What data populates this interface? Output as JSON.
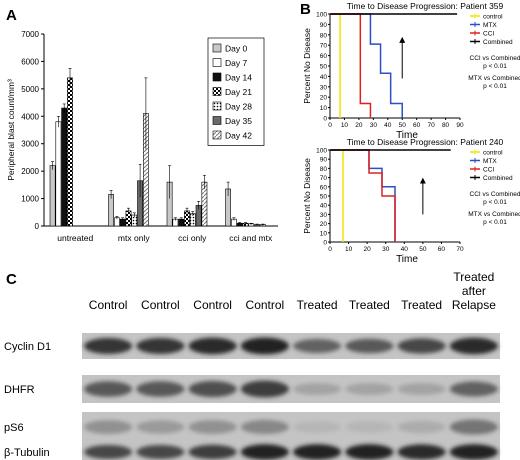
{
  "panels": {
    "A": "A",
    "B": "B",
    "C": "C"
  },
  "chart_data": [
    {
      "type": "bar",
      "panel": "A",
      "ylabel": "Peripheral blast count/mm³",
      "xlabel": "",
      "ylim": [
        0,
        7000
      ],
      "yticks": [
        0,
        1000,
        2000,
        3000,
        4000,
        5000,
        6000,
        7000
      ],
      "categories": [
        "untreated",
        "mtx only",
        "cci only",
        "cci and mtx"
      ],
      "legend_position": "top-right",
      "error_bars": true,
      "series": [
        {
          "name": "Day 0",
          "values": [
            2200,
            1150,
            1600,
            1350
          ],
          "errors": [
            150,
            150,
            600,
            250
          ],
          "pattern": "lightgray"
        },
        {
          "name": "Day 7",
          "values": [
            3800,
            300,
            250,
            250
          ],
          "errors": [
            200,
            50,
            50,
            50
          ],
          "pattern": "white"
        },
        {
          "name": "Day 14",
          "values": [
            4300,
            250,
            250,
            100
          ],
          "errors": [
            150,
            50,
            50,
            30
          ],
          "pattern": "black"
        },
        {
          "name": "Day 21",
          "values": [
            5400,
            550,
            550,
            100
          ],
          "errors": [
            350,
            100,
            100,
            30
          ],
          "pattern": "checker"
        },
        {
          "name": "Day 28",
          "values": [
            null,
            400,
            450,
            80
          ],
          "errors": [
            null,
            80,
            80,
            20
          ],
          "pattern": "dots"
        },
        {
          "name": "Day 35",
          "values": [
            null,
            1650,
            750,
            50
          ],
          "errors": [
            null,
            600,
            150,
            20
          ],
          "pattern": "darkgray"
        },
        {
          "name": "Day 42",
          "values": [
            null,
            4100,
            1600,
            50
          ],
          "errors": [
            null,
            1300,
            250,
            20
          ],
          "pattern": "diag"
        }
      ]
    },
    {
      "type": "line",
      "step": true,
      "panel": "B-top",
      "title": "Time to Disease Progression: Patient 359",
      "xlabel": "Time",
      "ylabel": "Percent No Disease",
      "xlim": [
        0,
        90
      ],
      "ylim": [
        0,
        100
      ],
      "xticks": [
        0,
        10,
        20,
        30,
        40,
        50,
        60,
        70,
        80,
        90
      ],
      "yticks": [
        0,
        10,
        20,
        30,
        40,
        50,
        60,
        70,
        80,
        90,
        100
      ],
      "arrow_at": [
        50,
        78
      ],
      "series": [
        {
          "name": "control",
          "color": "#f0e400",
          "x": [
            0,
            7,
            7
          ],
          "y": [
            100,
            100,
            0
          ]
        },
        {
          "name": "MTX",
          "color": "#2b4fc4",
          "x": [
            0,
            28,
            28,
            35,
            35,
            42,
            42,
            50,
            50
          ],
          "y": [
            100,
            100,
            71,
            71,
            43,
            43,
            14,
            14,
            0
          ]
        },
        {
          "name": "CCI",
          "color": "#e02020",
          "x": [
            0,
            21,
            21,
            28,
            28
          ],
          "y": [
            100,
            100,
            14,
            14,
            0
          ]
        },
        {
          "name": "Combined",
          "color": "#000000",
          "x": [
            0,
            88
          ],
          "y": [
            100,
            100
          ]
        }
      ],
      "annotations": [
        "CCI vs Combined",
        "p < 0.01",
        "MTX vs Combined",
        "p < 0.01"
      ]
    },
    {
      "type": "line",
      "step": true,
      "panel": "B-bottom",
      "title": "Time to Disease Progression: Patient 240",
      "xlabel": "Time",
      "ylabel": "Percent No Disease",
      "xlim": [
        0,
        70
      ],
      "ylim": [
        0,
        100
      ],
      "xticks": [
        0,
        10,
        20,
        30,
        40,
        50,
        60,
        70
      ],
      "yticks": [
        0,
        10,
        20,
        30,
        40,
        50,
        60,
        70,
        80,
        90,
        100
      ],
      "arrow_at": [
        50,
        70
      ],
      "series": [
        {
          "name": "control",
          "color": "#f0e400",
          "x": [
            0,
            7,
            7
          ],
          "y": [
            100,
            100,
            0
          ]
        },
        {
          "name": "MTX",
          "color": "#2b4fc4",
          "x": [
            0,
            21,
            21,
            28,
            28,
            35,
            35
          ],
          "y": [
            100,
            100,
            80,
            80,
            60,
            60,
            0
          ]
        },
        {
          "name": "CCI",
          "color": "#e02020",
          "x": [
            0,
            21,
            21,
            28,
            28,
            35,
            35
          ],
          "y": [
            100,
            100,
            75,
            75,
            50,
            50,
            0
          ]
        },
        {
          "name": "Combined",
          "color": "#000000",
          "x": [
            0,
            65
          ],
          "y": [
            100,
            100
          ]
        }
      ],
      "annotations": [
        "CCI vs Combined",
        "p < 0.01",
        "MTX vs Combined",
        "p < 0.01"
      ]
    }
  ],
  "blot": {
    "columns": [
      "Control",
      "Control",
      "Control",
      "Control",
      "Treated",
      "Treated",
      "Treated",
      "Treated after Relapse"
    ],
    "last_column_lines": [
      "Treated",
      "after",
      "Relapse"
    ],
    "rows": [
      {
        "label": "Cyclin D1",
        "intensity": [
          0.8,
          0.8,
          0.85,
          0.9,
          0.55,
          0.6,
          0.7,
          0.85
        ]
      },
      {
        "label": "DHFR",
        "intensity": [
          0.6,
          0.6,
          0.65,
          0.75,
          0.2,
          0.2,
          0.2,
          0.55
        ]
      },
      {
        "label": "pS6",
        "intensity": [
          0.3,
          0.25,
          0.3,
          0.35,
          0.1,
          0.1,
          0.15,
          0.45
        ]
      },
      {
        "label": "β-Tubulin",
        "intensity": [
          0.7,
          0.7,
          0.75,
          0.9,
          0.9,
          0.9,
          0.85,
          0.9
        ]
      }
    ]
  }
}
